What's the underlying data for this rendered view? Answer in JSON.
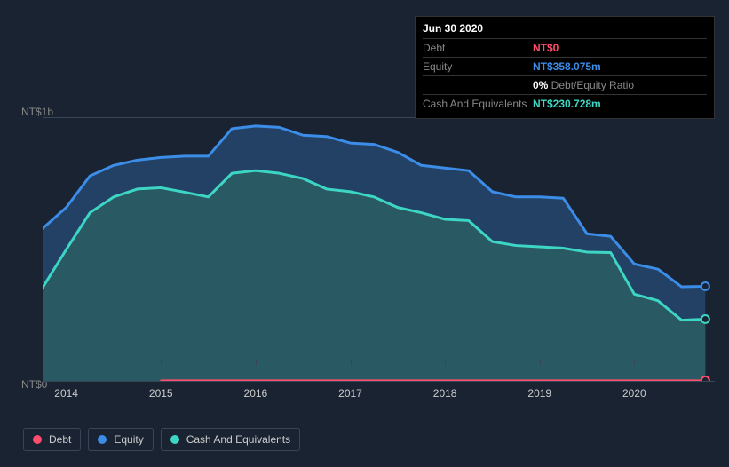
{
  "tooltip": {
    "date": "Jun 30 2020",
    "rows": [
      {
        "label": "Debt",
        "value": "NT$0",
        "color": "#ff4d6d"
      },
      {
        "label": "Equity",
        "value": "NT$358.075m",
        "color": "#3b8de8"
      },
      {
        "label": "",
        "value": "0%",
        "sub": " Debt/Equity Ratio",
        "color": "#ffffff"
      },
      {
        "label": "Cash And Equivalents",
        "value": "NT$230.728m",
        "color": "#3dd6c4"
      }
    ]
  },
  "chart": {
    "type": "area",
    "background_color": "#1a2332",
    "grid_color": "#3a4555",
    "y_axis": {
      "min": 0,
      "max": 1000,
      "labels": [
        {
          "v": 1000,
          "text": "NT$1b"
        },
        {
          "v": 0,
          "text": "NT$0"
        }
      ]
    },
    "x_axis": {
      "min": 2013.75,
      "max": 2020.85,
      "ticks": [
        2014,
        2015,
        2016,
        2017,
        2018,
        2019,
        2020
      ]
    },
    "series": [
      {
        "name": "Equity",
        "stroke": "#3b8de8",
        "fill": "#24476e",
        "fill_opacity": 0.85,
        "line_width": 3,
        "points": [
          [
            2013.75,
            580
          ],
          [
            2014.0,
            660
          ],
          [
            2014.25,
            780
          ],
          [
            2014.5,
            820
          ],
          [
            2014.75,
            840
          ],
          [
            2015.0,
            850
          ],
          [
            2015.25,
            855
          ],
          [
            2015.5,
            855
          ],
          [
            2015.75,
            960
          ],
          [
            2016.0,
            970
          ],
          [
            2016.25,
            965
          ],
          [
            2016.5,
            935
          ],
          [
            2016.75,
            930
          ],
          [
            2017.0,
            905
          ],
          [
            2017.25,
            900
          ],
          [
            2017.5,
            870
          ],
          [
            2017.75,
            820
          ],
          [
            2018.0,
            810
          ],
          [
            2018.25,
            800
          ],
          [
            2018.5,
            720
          ],
          [
            2018.75,
            700
          ],
          [
            2019.0,
            700
          ],
          [
            2019.25,
            695
          ],
          [
            2019.5,
            560
          ],
          [
            2019.75,
            550
          ],
          [
            2020.0,
            445
          ],
          [
            2020.25,
            425
          ],
          [
            2020.5,
            358
          ],
          [
            2020.75,
            360
          ]
        ]
      },
      {
        "name": "Cash And Equivalents",
        "stroke": "#3dd6c4",
        "fill": "#2a5e63",
        "fill_opacity": 0.85,
        "line_width": 3,
        "points": [
          [
            2013.75,
            355
          ],
          [
            2014.0,
            500
          ],
          [
            2014.25,
            640
          ],
          [
            2014.5,
            700
          ],
          [
            2014.75,
            730
          ],
          [
            2015.0,
            735
          ],
          [
            2015.25,
            718
          ],
          [
            2015.5,
            700
          ],
          [
            2015.75,
            790
          ],
          [
            2016.0,
            800
          ],
          [
            2016.25,
            790
          ],
          [
            2016.5,
            770
          ],
          [
            2016.75,
            730
          ],
          [
            2017.0,
            720
          ],
          [
            2017.25,
            700
          ],
          [
            2017.5,
            660
          ],
          [
            2017.75,
            640
          ],
          [
            2018.0,
            615
          ],
          [
            2018.25,
            610
          ],
          [
            2018.5,
            530
          ],
          [
            2018.75,
            515
          ],
          [
            2019.0,
            510
          ],
          [
            2019.25,
            505
          ],
          [
            2019.5,
            490
          ],
          [
            2019.75,
            488
          ],
          [
            2020.0,
            330
          ],
          [
            2020.25,
            305
          ],
          [
            2020.5,
            231
          ],
          [
            2020.75,
            235
          ]
        ]
      },
      {
        "name": "Debt",
        "stroke": "#ff4d6d",
        "fill": "none",
        "fill_opacity": 0,
        "line_width": 2,
        "points": [
          [
            2015.0,
            2
          ],
          [
            2020.75,
            2
          ]
        ]
      }
    ],
    "end_markers": [
      {
        "x": 2020.75,
        "y": 360,
        "color": "#3b8de8"
      },
      {
        "x": 2020.75,
        "y": 235,
        "color": "#3dd6c4"
      },
      {
        "x": 2020.75,
        "y": 2,
        "color": "#ff4d6d"
      }
    ]
  },
  "legend": [
    {
      "label": "Debt",
      "color": "#ff4d6d"
    },
    {
      "label": "Equity",
      "color": "#3b8de8"
    },
    {
      "label": "Cash And Equivalents",
      "color": "#3dd6c4"
    }
  ]
}
